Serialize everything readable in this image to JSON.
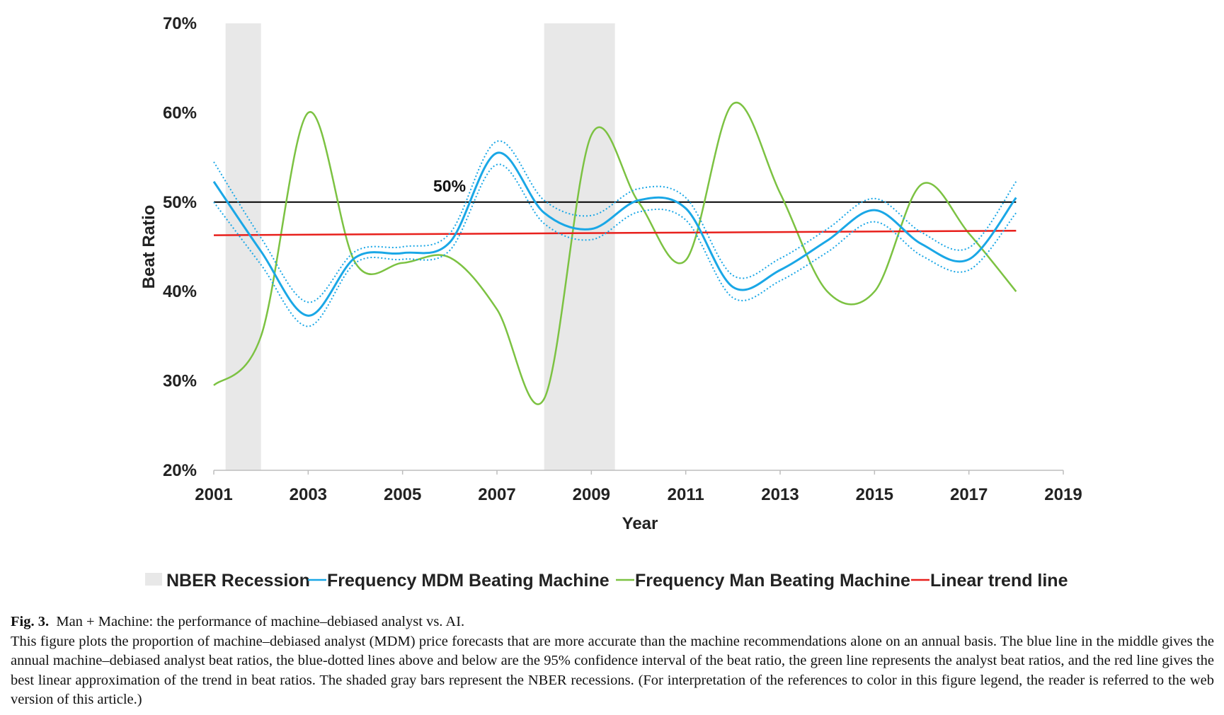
{
  "chart_data": {
    "type": "line",
    "xlabel": "Year",
    "ylabel": "Beat Ratio",
    "xlim": [
      2001,
      2019
    ],
    "ylim": [
      20,
      70
    ],
    "x_ticks": [
      "2001",
      "2003",
      "2005",
      "2007",
      "2009",
      "2011",
      "2013",
      "2015",
      "2017",
      "2019"
    ],
    "y_ticks": [
      "20%",
      "30%",
      "40%",
      "50%",
      "60%",
      "70%"
    ],
    "grid": false,
    "legend_position": "bottom",
    "annotation": "50%",
    "reference_line": {
      "y": 50,
      "color": "#000000"
    },
    "recessions": {
      "name": "NBER Recession",
      "color": "#e8e8e8",
      "periods": [
        [
          2001.25,
          2002.0
        ],
        [
          2008.0,
          2009.5
        ]
      ]
    },
    "series": [
      {
        "name": "Frequency MDM Beating Machine",
        "color": "#1aa7e6",
        "x": [
          2001,
          2002,
          2003,
          2004,
          2005,
          2006,
          2007,
          2008,
          2009,
          2010,
          2011,
          2012,
          2013,
          2014,
          2015,
          2016,
          2017,
          2018
        ],
        "values": [
          52.3,
          44.5,
          37.3,
          43.8,
          44.3,
          45.5,
          55.5,
          48.8,
          47.0,
          50.2,
          49.3,
          40.5,
          42.4,
          45.7,
          49.1,
          45.3,
          43.6,
          50.5
        ],
        "ci_upper": [
          54.5,
          46.0,
          38.8,
          44.5,
          45.0,
          46.5,
          56.8,
          50.2,
          48.5,
          51.5,
          50.5,
          41.8,
          43.7,
          47.0,
          50.4,
          46.6,
          44.9,
          52.3
        ],
        "ci_lower": [
          50.0,
          43.0,
          36.1,
          43.2,
          43.6,
          44.6,
          54.2,
          47.6,
          45.8,
          48.9,
          48.0,
          39.3,
          41.2,
          44.4,
          47.8,
          44.0,
          42.4,
          48.8
        ]
      },
      {
        "name": "Frequency Man Beating Machine",
        "color": "#7cc242",
        "x": [
          2001,
          2002,
          2003,
          2004,
          2005,
          2006,
          2007,
          2008,
          2009,
          2010,
          2011,
          2012,
          2013,
          2014,
          2015,
          2016,
          2017,
          2018
        ],
        "values": [
          29.5,
          35.0,
          60.0,
          43.2,
          43.2,
          43.8,
          38.0,
          28.0,
          57.5,
          50.0,
          43.5,
          61.0,
          51.0,
          40.0,
          40.0,
          52.0,
          46.5,
          40.0
        ]
      },
      {
        "name": "Linear trend line",
        "color": "#e8201c",
        "x": [
          2001,
          2018
        ],
        "values": [
          46.3,
          46.8
        ]
      }
    ]
  },
  "caption": {
    "label": "Fig. 3.",
    "title": "Man + Machine: the performance of machine–debiased analyst vs. AI.",
    "text": "This figure plots the proportion of machine–debiased analyst (MDM) price forecasts that are more accurate than the machine recommendations alone on an annual basis. The blue line in the middle gives the annual machine–debiased analyst beat ratios, the blue-dotted lines above and below are the 95% confidence interval of the beat ratio, the green line represents the analyst beat ratios, and the red line gives the best linear approximation of the trend in beat ratios. The shaded gray bars represent the NBER recessions. (For interpretation of the references to color in this figure legend, the reader is referred to the web version of this article.)"
  }
}
